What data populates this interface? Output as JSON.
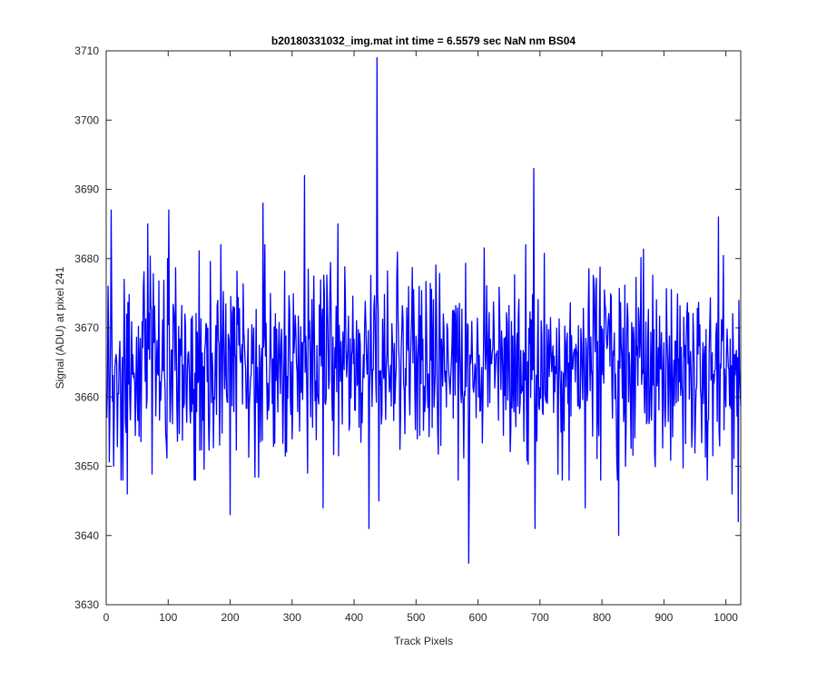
{
  "chart_data": {
    "type": "line",
    "title": "b20180331032_img.mat int time = 6.5579 sec  NaN nm BS04",
    "xlabel": "Track Pixels",
    "ylabel": "Signal (ADU) at pixel 241",
    "xlim": [
      0,
      1024
    ],
    "ylim": [
      3630,
      3710
    ],
    "x_ticks": [
      0,
      100,
      200,
      300,
      400,
      500,
      600,
      700,
      800,
      900,
      1000
    ],
    "y_ticks": [
      3630,
      3640,
      3650,
      3660,
      3670,
      3680,
      3690,
      3700,
      3710
    ],
    "grid": false,
    "box": true,
    "line_color": "#0000ff",
    "series": [
      {
        "x_start": 1,
        "x_step": 1,
        "count": 1024,
        "noise_model": {
          "mean": 3664.5,
          "sd": 7
        },
        "notable_points": [
          {
            "x": 1,
            "y": 3657
          },
          {
            "x": 3,
            "y": 3676
          },
          {
            "x": 8,
            "y": 3687
          },
          {
            "x": 12,
            "y": 3650
          },
          {
            "x": 24,
            "y": 3648
          },
          {
            "x": 34,
            "y": 3646
          },
          {
            "x": 67,
            "y": 3685
          },
          {
            "x": 101,
            "y": 3687
          },
          {
            "x": 200,
            "y": 3643
          },
          {
            "x": 253,
            "y": 3688
          },
          {
            "x": 320,
            "y": 3692
          },
          {
            "x": 325,
            "y": 3649
          },
          {
            "x": 350,
            "y": 3644
          },
          {
            "x": 374,
            "y": 3685
          },
          {
            "x": 424,
            "y": 3641
          },
          {
            "x": 437,
            "y": 3709
          },
          {
            "x": 440,
            "y": 3645
          },
          {
            "x": 585,
            "y": 3636
          },
          {
            "x": 690,
            "y": 3693
          },
          {
            "x": 692,
            "y": 3641
          },
          {
            "x": 773,
            "y": 3644
          },
          {
            "x": 827,
            "y": 3640
          },
          {
            "x": 988,
            "y": 3686
          },
          {
            "x": 1010,
            "y": 3646
          },
          {
            "x": 1020,
            "y": 3642
          },
          {
            "x": 1023,
            "y": 3661
          }
        ]
      }
    ]
  }
}
